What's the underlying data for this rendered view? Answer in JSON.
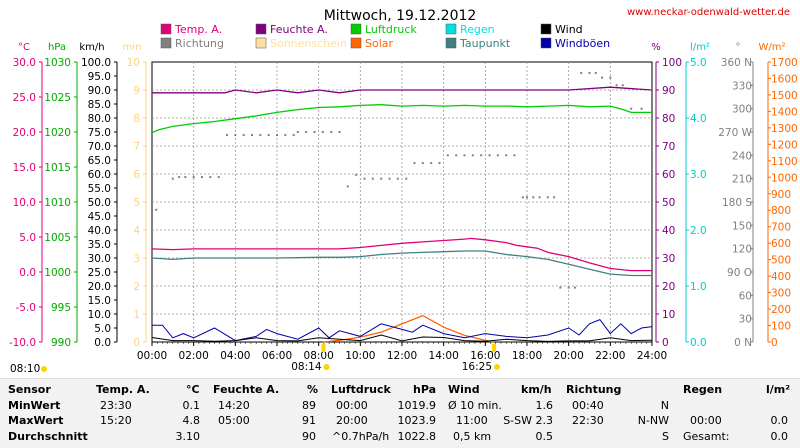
{
  "title": "Mittwoch, 19.12.2012",
  "site": "www.neckar-odenwald-wetter.de",
  "colors": {
    "temp": "#e0007a",
    "humidity": "#800080",
    "pressure": "#00cc00",
    "rain": "#00e0e0",
    "wind": "#000000",
    "direction": "#808080",
    "sunshine": "#ffe0a0",
    "solar": "#ff6600",
    "dewpoint": "#408080",
    "gust": "#0000aa",
    "grid": "#bbbbbb"
  },
  "chart_data": {
    "type": "line",
    "title": "Mittwoch, 19.12.2012",
    "legend": [
      {
        "name": "Temp. A.",
        "color": "#e0007a"
      },
      {
        "name": "Richtung",
        "color": "#808080"
      },
      {
        "name": "Feuchte A.",
        "color": "#800080"
      },
      {
        "name": "Sonnenschein",
        "color": "#ffe0a0"
      },
      {
        "name": "Luftdruck",
        "color": "#00cc00"
      },
      {
        "name": "Solar",
        "color": "#ff6600"
      },
      {
        "name": "Regen",
        "color": "#00e0e0"
      },
      {
        "name": "Taupunkt",
        "color": "#408080"
      },
      {
        "name": "Wind",
        "color": "#000000"
      },
      {
        "name": "Windböen",
        "color": "#0000aa"
      }
    ],
    "axes": {
      "celsius": {
        "label": "°C",
        "color": "#e0007a",
        "ticks": [
          "30.0",
          "25.0",
          "20.0",
          "15.0",
          "10.0",
          "5.0",
          "0.0",
          "-5.0",
          "-10.0"
        ]
      },
      "hpa": {
        "label": "hPa",
        "color": "#00aa00",
        "ticks": [
          "1030",
          "1025",
          "1020",
          "1015",
          "1010",
          "1005",
          "1000",
          "995",
          "990"
        ]
      },
      "kmh": {
        "label": "km/h",
        "color": "#000000",
        "ticks": [
          "100.0",
          "95.0",
          "90.0",
          "85.0",
          "80.0",
          "75.0",
          "70.0",
          "65.0",
          "60.0",
          "55.0",
          "50.0",
          "45.0",
          "40.0",
          "35.0",
          "30.0",
          "25.0",
          "20.0",
          "15.0",
          "10.0",
          "5.0",
          "0.0"
        ]
      },
      "min": {
        "label": "min",
        "color": "#ffd27f",
        "ticks": [
          "10",
          "9",
          "8",
          "7",
          "6",
          "5",
          "4",
          "3",
          "2",
          "1",
          "0"
        ]
      },
      "percent": {
        "label": "%",
        "color": "#800080",
        "ticks": [
          "100",
          "90",
          "80",
          "70",
          "60",
          "50",
          "40",
          "30",
          "20",
          "10",
          "0"
        ]
      },
      "rain": {
        "label": "l/m²",
        "color": "#00cccc",
        "ticks": [
          "5.0",
          "4.0",
          "3.0",
          "2.0",
          "1.0",
          "0.0"
        ]
      },
      "degree": {
        "label": "°",
        "color": "#808080",
        "ticks": [
          "360 N",
          "330",
          "300",
          "270 W",
          "240",
          "210",
          "180 S",
          "150",
          "120",
          "90 O",
          "60",
          "30",
          "0 N"
        ]
      },
      "solar": {
        "label": "W/m²",
        "color": "#ff6600",
        "ticks": [
          "1700",
          "1600",
          "1500",
          "1400",
          "1300",
          "1200",
          "1100",
          "1000",
          "900",
          "800",
          "700",
          "600",
          "500",
          "400",
          "300",
          "200",
          "100",
          "0"
        ]
      },
      "x": {
        "ticks": [
          "00:00",
          "02:00",
          "04:00",
          "06:00",
          "08:00",
          "10:00",
          "12:00",
          "14:00",
          "16:00",
          "18:00",
          "20:00",
          "22:00",
          "24:00"
        ]
      }
    },
    "sun": {
      "sunrise": "08:14",
      "sunset": "16:25",
      "marker": "08:10"
    },
    "series": [
      {
        "name": "Temp. A.",
        "unit": "°C",
        "x": [
          0,
          1,
          2,
          4,
          6,
          8,
          9,
          10,
          11,
          12,
          13,
          14,
          15,
          15.3,
          16,
          17,
          17.5,
          18,
          18.5,
          19,
          20,
          21,
          22,
          23,
          24
        ],
        "y": [
          3.3,
          3.2,
          3.3,
          3.3,
          3.3,
          3.3,
          3.3,
          3.5,
          3.8,
          4.1,
          4.3,
          4.5,
          4.7,
          4.8,
          4.6,
          4.2,
          3.8,
          3.6,
          3.4,
          2.8,
          2.2,
          1.3,
          0.5,
          0.2,
          0.2
        ]
      },
      {
        "name": "Taupunkt",
        "unit": "°C",
        "x": [
          0,
          1,
          2,
          4,
          6,
          8,
          9,
          10,
          11,
          12,
          13,
          14,
          15,
          16,
          17,
          18,
          19,
          20,
          21,
          22,
          23,
          24
        ],
        "y": [
          2.0,
          1.8,
          2.0,
          2.0,
          2.0,
          2.1,
          2.1,
          2.2,
          2.5,
          2.7,
          2.8,
          2.9,
          3.0,
          3.0,
          2.5,
          2.2,
          1.8,
          1.1,
          0.4,
          -0.3,
          -0.5,
          -0.5
        ]
      },
      {
        "name": "Feuchte A.",
        "unit": "%",
        "x": [
          0,
          3.5,
          4,
          5,
          6,
          7,
          8,
          9,
          10,
          12,
          14,
          16,
          18,
          20,
          22,
          24
        ],
        "y": [
          89,
          89,
          90,
          89,
          90,
          89,
          90,
          89,
          90,
          90,
          90,
          90,
          90,
          90,
          91,
          90
        ]
      },
      {
        "name": "Luftdruck",
        "unit": "hPa",
        "x": [
          0,
          0.3,
          1,
          2,
          3,
          4,
          5,
          6,
          7,
          8,
          9,
          10,
          11,
          12,
          13,
          14,
          15,
          16,
          17,
          18,
          19,
          20,
          21,
          22,
          22.5,
          23,
          23.5,
          24
        ],
        "y": [
          1019.9,
          1020.3,
          1020.8,
          1021.2,
          1021.5,
          1021.9,
          1022.3,
          1022.8,
          1023.2,
          1023.5,
          1023.6,
          1023.8,
          1023.9,
          1023.7,
          1023.8,
          1023.7,
          1023.8,
          1023.7,
          1023.7,
          1023.6,
          1023.7,
          1023.8,
          1023.6,
          1023.7,
          1023.3,
          1022.8,
          1022.8,
          1022.8
        ]
      },
      {
        "name": "Wind",
        "unit": "km/h",
        "x": [
          0,
          1,
          2,
          3,
          4,
          5,
          6,
          7,
          8,
          9,
          10,
          11,
          12,
          13,
          14,
          15,
          16,
          17,
          18,
          19,
          20,
          21,
          22,
          23,
          24
        ],
        "y": [
          1.6,
          0.5,
          0.5,
          0.3,
          0.5,
          1.5,
          0.5,
          0.4,
          1.5,
          1.0,
          0.5,
          2.5,
          0.4,
          1.8,
          1.6,
          0.5,
          0.3,
          1.0,
          0.5,
          0.2,
          0.4,
          0.4,
          1.5,
          0.5,
          0.6
        ]
      },
      {
        "name": "Windböen",
        "unit": "km/h",
        "x": [
          0,
          0.5,
          1,
          1.5,
          2,
          3,
          4,
          5,
          5.5,
          6,
          7,
          8,
          8.5,
          9,
          10,
          11,
          12,
          12.5,
          13,
          14,
          15,
          16,
          17,
          18,
          19,
          20,
          20.5,
          21,
          21.5,
          22,
          22.5,
          23,
          23.5,
          24
        ],
        "y": [
          6.0,
          6.0,
          1.5,
          3.0,
          1.5,
          5.0,
          0.5,
          2.0,
          4.5,
          3.0,
          1.0,
          5.0,
          1.5,
          4.0,
          2.0,
          6.5,
          4.5,
          3.5,
          6.0,
          3.0,
          1.5,
          3.0,
          2.0,
          1.5,
          2.5,
          5.0,
          2.5,
          6.5,
          8.0,
          3.0,
          6.5,
          3.0,
          5.0,
          5.5
        ]
      },
      {
        "name": "Solar",
        "unit": "W/m²",
        "x": [
          8.2,
          9,
          10,
          11,
          12,
          13,
          14,
          15,
          16,
          16.4
        ],
        "y": [
          0,
          10,
          30,
          60,
          110,
          160,
          90,
          40,
          10,
          0
        ]
      }
    ],
    "direction_points": {
      "unit": "°",
      "x": [
        0.2,
        1,
        1.3,
        1.6,
        2,
        2.4,
        2.8,
        3.2,
        3.6,
        4,
        4.4,
        4.8,
        5.2,
        5.6,
        6,
        6.4,
        6.8,
        7,
        7.4,
        7.8,
        8.2,
        8.6,
        9,
        9.4,
        9.8,
        10.2,
        10.6,
        11,
        11.4,
        11.8,
        12.2,
        12.6,
        13,
        13.4,
        13.8,
        14.2,
        14.6,
        15,
        15.4,
        15.8,
        16.2,
        16.6,
        17,
        17.4,
        17.8,
        18,
        18.3,
        18.6,
        19,
        19.3,
        19.6,
        20,
        20.3,
        20.6,
        21,
        21.3,
        21.6,
        22,
        22.3,
        22.6,
        23,
        23.5,
        24
      ],
      "y": [
        170,
        210,
        212,
        212,
        212,
        212,
        212,
        212,
        266,
        266,
        266,
        266,
        266,
        266,
        266,
        266,
        266,
        270,
        270,
        270,
        270,
        270,
        270,
        200,
        215,
        210,
        210,
        210,
        210,
        210,
        210,
        230,
        230,
        230,
        230,
        240,
        240,
        240,
        240,
        240,
        240,
        240,
        240,
        240,
        186,
        186,
        186,
        186,
        186,
        186,
        70,
        70,
        70,
        346,
        346,
        346,
        340,
        340,
        330,
        330,
        300,
        300,
        325
      ]
    }
  },
  "footer": {
    "headers": [
      "Sensor",
      "Temp. A.",
      "°C",
      "Feuchte A.",
      "%",
      "Luftdruck",
      "hPa",
      "Wind",
      "km/h",
      "Richtung",
      "Regen",
      "l/m²"
    ],
    "rows": [
      {
        "label": "MinWert",
        "temp_time": "23:30",
        "temp": "0.1",
        "hum_time": "14:20",
        "hum": "89",
        "pres_time": "00:00",
        "pres": "1019.9",
        "wind_lbl": "Ø 10 min.",
        "wind": "1.6",
        "dir_time": "00:40",
        "dir": "N",
        "rain_time": "",
        "rain": ""
      },
      {
        "label": "MaxWert",
        "temp_time": "15:20",
        "temp": "4.8",
        "hum_time": "05:00",
        "hum": "91",
        "pres_time": "20:00",
        "pres": "1023.9",
        "wind_lbl": "11:00",
        "wind_dir": "S-SW 2.3",
        "wind": "",
        "dir_time": "22:30",
        "dir": "N-NW",
        "rain_time": "00:00",
        "rain": "0.0"
      },
      {
        "label": "Durchschnitt",
        "temp_time": "",
        "temp": "3.10",
        "hum_time": "",
        "hum": "90",
        "pres_time": "^0.7hPa/h",
        "pres": "1022.8",
        "wind_lbl": "0,5 km",
        "wind": "0.5",
        "dir_time": "",
        "dir": "S",
        "rain_time": "Gesamt:",
        "rain": "0.0"
      }
    ]
  }
}
